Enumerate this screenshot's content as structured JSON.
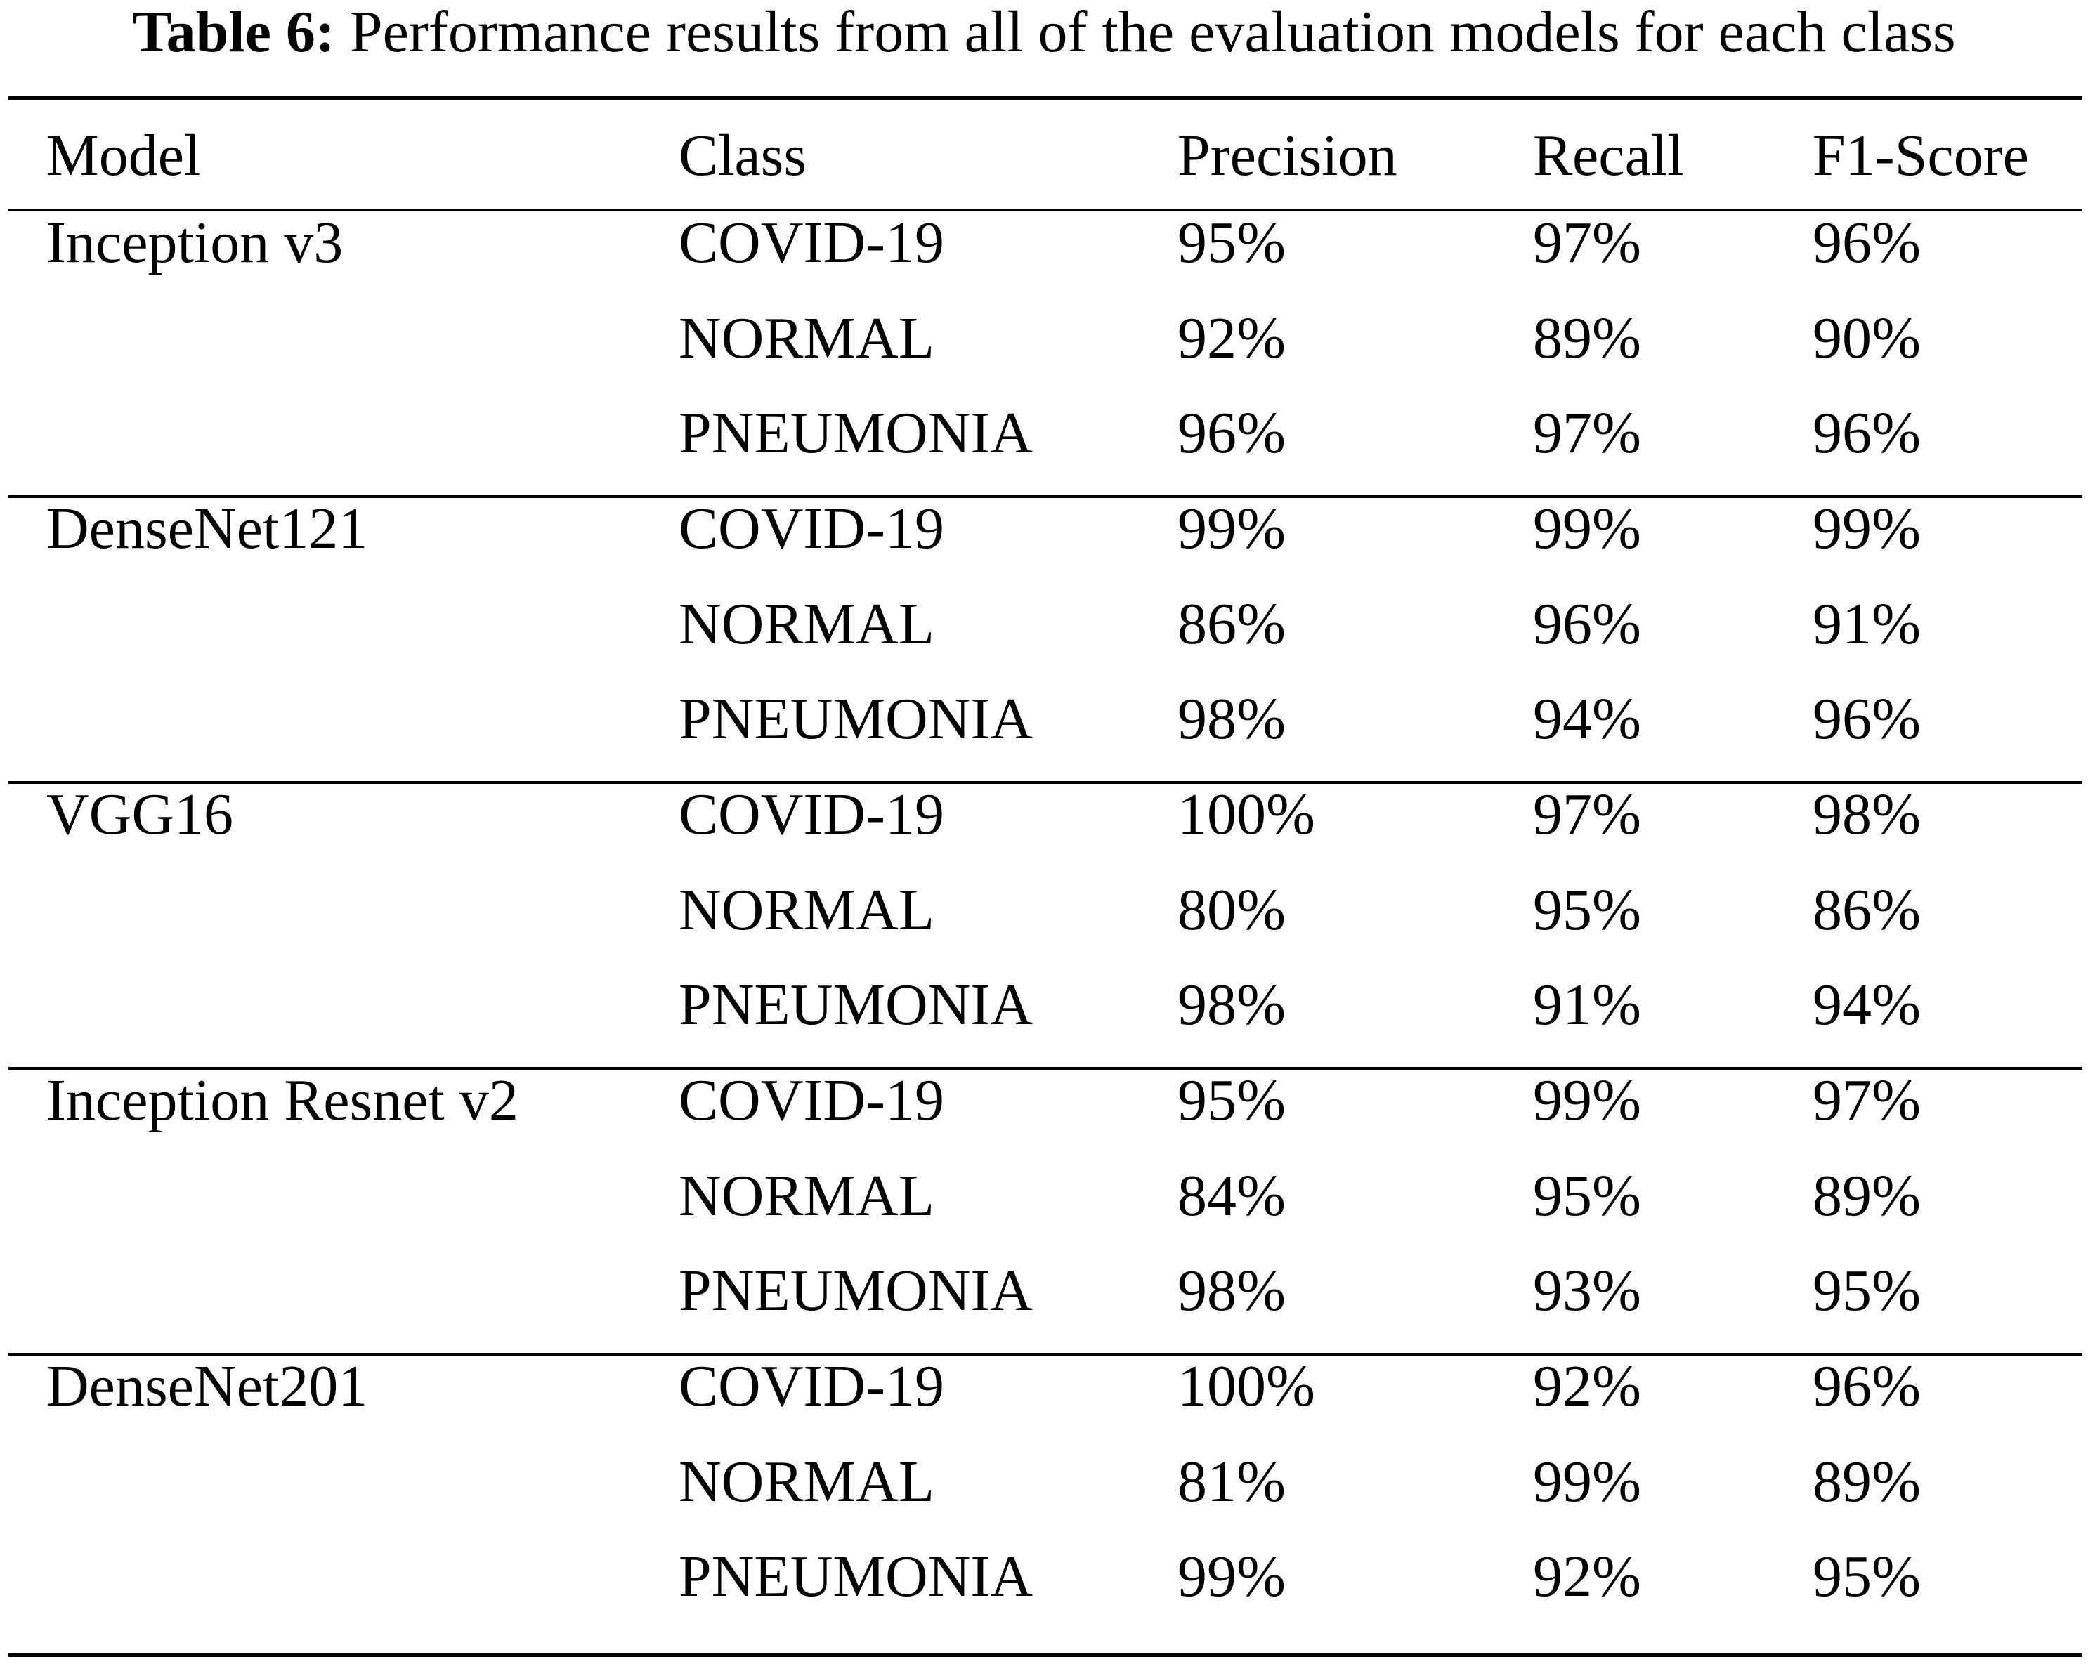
{
  "caption": {
    "label": "Table 6:",
    "text": "Performance results from all of the evaluation models for each class"
  },
  "table": {
    "headers": [
      "Model",
      "Class",
      "Precision",
      "Recall",
      "F1-Score"
    ],
    "groups": [
      {
        "model": "Inception v3",
        "rows": [
          {
            "class": "COVID-19",
            "precision": "95%",
            "recall": "97%",
            "f1": "96%"
          },
          {
            "class": "NORMAL",
            "precision": "92%",
            "recall": "89%",
            "f1": "90%"
          },
          {
            "class": "PNEUMONIA",
            "precision": "96%",
            "recall": "97%",
            "f1": "96%"
          }
        ]
      },
      {
        "model": "DenseNet121",
        "rows": [
          {
            "class": "COVID-19",
            "precision": "99%",
            "recall": "99%",
            "f1": "99%"
          },
          {
            "class": "NORMAL",
            "precision": "86%",
            "recall": "96%",
            "f1": "91%"
          },
          {
            "class": "PNEUMONIA",
            "precision": "98%",
            "recall": "94%",
            "f1": "96%"
          }
        ]
      },
      {
        "model": "VGG16",
        "rows": [
          {
            "class": "COVID-19",
            "precision": "100%",
            "recall": "97%",
            "f1": "98%"
          },
          {
            "class": "NORMAL",
            "precision": "80%",
            "recall": "95%",
            "f1": "86%"
          },
          {
            "class": "PNEUMONIA",
            "precision": "98%",
            "recall": "91%",
            "f1": "94%"
          }
        ]
      },
      {
        "model": "Inception Resnet v2",
        "rows": [
          {
            "class": "COVID-19",
            "precision": "95%",
            "recall": "99%",
            "f1": "97%"
          },
          {
            "class": "NORMAL",
            "precision": "84%",
            "recall": "95%",
            "f1": "89%"
          },
          {
            "class": "PNEUMONIA",
            "precision": "98%",
            "recall": "93%",
            "f1": "95%"
          }
        ]
      },
      {
        "model": "DenseNet201",
        "rows": [
          {
            "class": "COVID-19",
            "precision": "100%",
            "recall": "92%",
            "f1": "96%"
          },
          {
            "class": "NORMAL",
            "precision": "81%",
            "recall": "99%",
            "f1": "89%"
          },
          {
            "class": "PNEUMONIA",
            "precision": "99%",
            "recall": "92%",
            "f1": "95%"
          }
        ]
      }
    ]
  }
}
